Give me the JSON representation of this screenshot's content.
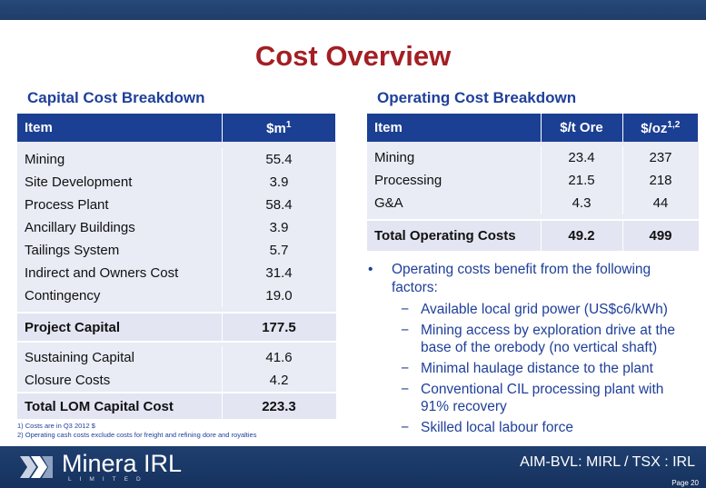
{
  "title": "Cost Overview",
  "capital": {
    "heading": "Capital Cost Breakdown",
    "col_item": "Item",
    "col_value": "$m",
    "col_value_sup": "1",
    "rows_a": [
      {
        "item": "Mining",
        "value": "55.4"
      },
      {
        "item": "Site Development",
        "value": "3.9"
      },
      {
        "item": "Process Plant",
        "value": "58.4"
      },
      {
        "item": "Ancillary Buildings",
        "value": "3.9"
      },
      {
        "item": "Tailings System",
        "value": "5.7"
      },
      {
        "item": "Indirect and Owners Cost",
        "value": "31.4"
      },
      {
        "item": "Contingency",
        "value": "19.0"
      }
    ],
    "project_capital": {
      "item": "Project Capital",
      "value": "177.5"
    },
    "rows_b": [
      {
        "item": "Sustaining Capital",
        "value": "41.6"
      },
      {
        "item": "Closure Costs",
        "value": "4.2"
      }
    ],
    "total": {
      "item": "Total LOM Capital Cost",
      "value": "223.3"
    }
  },
  "operating": {
    "heading": "Operating Cost Breakdown",
    "col_item": "Item",
    "col_ore": "$/t Ore",
    "col_oz": "$/oz",
    "col_oz_sup": "1,2",
    "rows": [
      {
        "item": "Mining",
        "ore": "23.4",
        "oz": "237"
      },
      {
        "item": "Processing",
        "ore": "21.5",
        "oz": "218"
      },
      {
        "item": "G&A",
        "ore": "4.3",
        "oz": "44"
      }
    ],
    "total": {
      "item": "Total Operating Costs",
      "ore": "49.2",
      "oz": "499"
    }
  },
  "bullets": {
    "main": "Operating costs benefit from the following factors:",
    "subs": [
      "Available local grid power (US$c6/kWh)",
      "Mining access by exploration drive at the base of the orebody (no vertical shaft)",
      "Minimal haulage distance to the plant",
      "Conventional CIL processing plant with 91% recovery",
      "Skilled local labour force"
    ]
  },
  "footnotes": [
    "1) Costs are in Q3 2012 $",
    "2) Operating cash costs exclude costs for freight and refining dore and royalties"
  ],
  "footer": {
    "logo": "Minera IRL",
    "logo_sub": "LIMITED",
    "ticker": "AIM-BVL: MIRL / TSX : IRL",
    "page": "Page 20"
  },
  "colors": {
    "title": "#a31f24",
    "accent": "#1f3f9a",
    "header_fill": "#1b3f93",
    "footer": "#1f3f70"
  }
}
